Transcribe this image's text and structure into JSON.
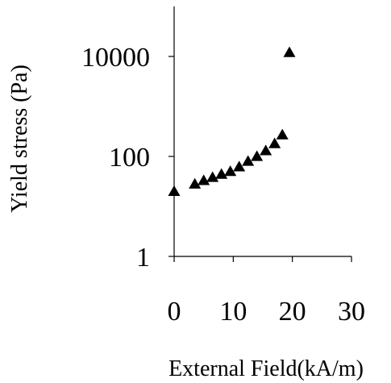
{
  "chart_data": {
    "type": "scatter",
    "title": "",
    "xlabel": "External Field(kA/m)",
    "ylabel": "Yield stress (Pa)",
    "x_scale": "linear",
    "y_scale": "log",
    "xlim": [
      0,
      30
    ],
    "ylim": [
      1,
      100000
    ],
    "x_ticks": [
      0,
      10,
      20,
      30
    ],
    "x_tick_labels": [
      "0",
      "10",
      "20",
      "30"
    ],
    "y_ticks": [
      1,
      100,
      10000
    ],
    "y_tick_labels": [
      "1",
      "100",
      "10000"
    ],
    "grid": false,
    "legend": "none",
    "marker": "triangle",
    "marker_color": "#000000",
    "series": [
      {
        "points": [
          {
            "x": 0,
            "y": 20
          },
          {
            "x": 3.5,
            "y": 28
          },
          {
            "x": 5,
            "y": 33
          },
          {
            "x": 6.5,
            "y": 38
          },
          {
            "x": 8,
            "y": 44
          },
          {
            "x": 9.5,
            "y": 50
          },
          {
            "x": 11,
            "y": 62
          },
          {
            "x": 12.5,
            "y": 80
          },
          {
            "x": 14,
            "y": 100
          },
          {
            "x": 15.5,
            "y": 130
          },
          {
            "x": 17,
            "y": 180
          },
          {
            "x": 18.3,
            "y": 270
          },
          {
            "x": 19.5,
            "y": 12000
          }
        ]
      }
    ]
  }
}
